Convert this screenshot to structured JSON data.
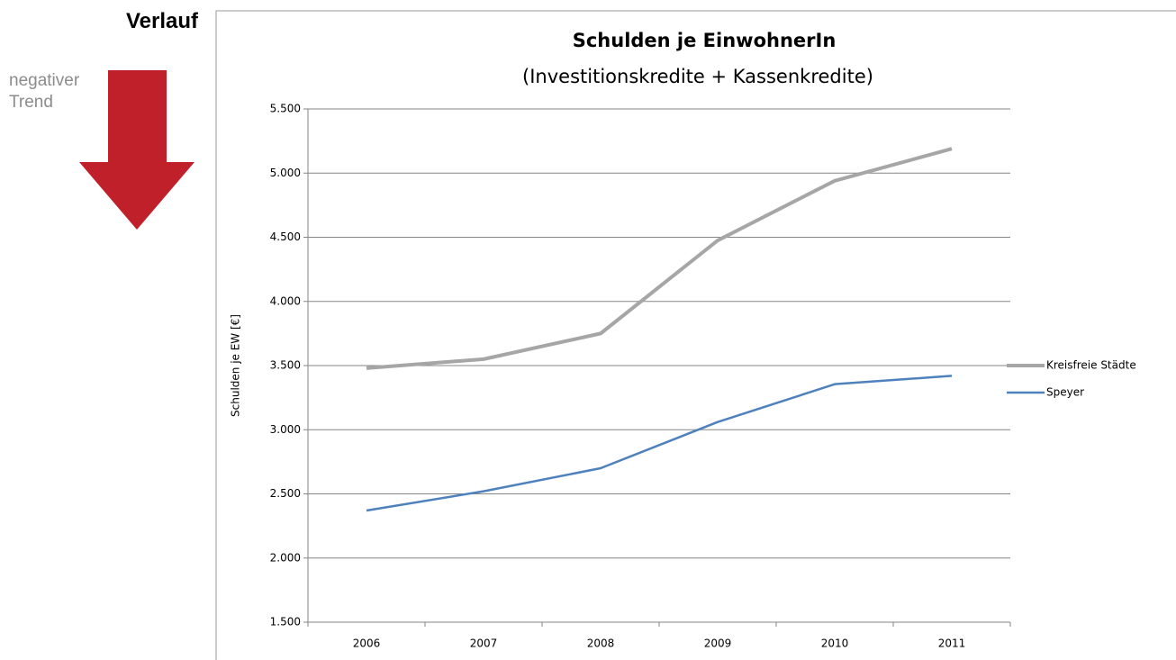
{
  "chart_data": {
    "type": "line",
    "annotations": [
      "Verlauf",
      "negativer Trend"
    ],
    "title": "Schulden je EinwohnerIn",
    "subtitle": "(Investitionskredite + Kassenkredite)",
    "y_label": "Schulden je EW [€]",
    "categories": [
      "2006",
      "2007",
      "2008",
      "2009",
      "2010",
      "2011"
    ],
    "series": [
      {
        "name": "Kreisfreie Städte",
        "color": "#a6a6a6",
        "values": [
          3480,
          3550,
          3750,
          4475,
          4940,
          5190
        ]
      },
      {
        "name": "Speyer",
        "color": "#4f81bd",
        "values": [
          2370,
          2520,
          2700,
          3060,
          3355,
          3420
        ]
      }
    ],
    "ylim": [
      1500,
      5500
    ],
    "yticks": [
      {
        "value": 1500,
        "label": "1.500"
      },
      {
        "value": 2000,
        "label": "2.000"
      },
      {
        "value": 2500,
        "label": "2.500"
      },
      {
        "value": 3000,
        "label": "3.000"
      },
      {
        "value": 3500,
        "label": "3.500"
      },
      {
        "value": 4000,
        "label": "4.000"
      },
      {
        "value": 4500,
        "label": "4.500"
      },
      {
        "value": 5000,
        "label": "5.000"
      },
      {
        "value": 5500,
        "label": "5.500"
      }
    ],
    "grid": true,
    "legend": "right"
  }
}
